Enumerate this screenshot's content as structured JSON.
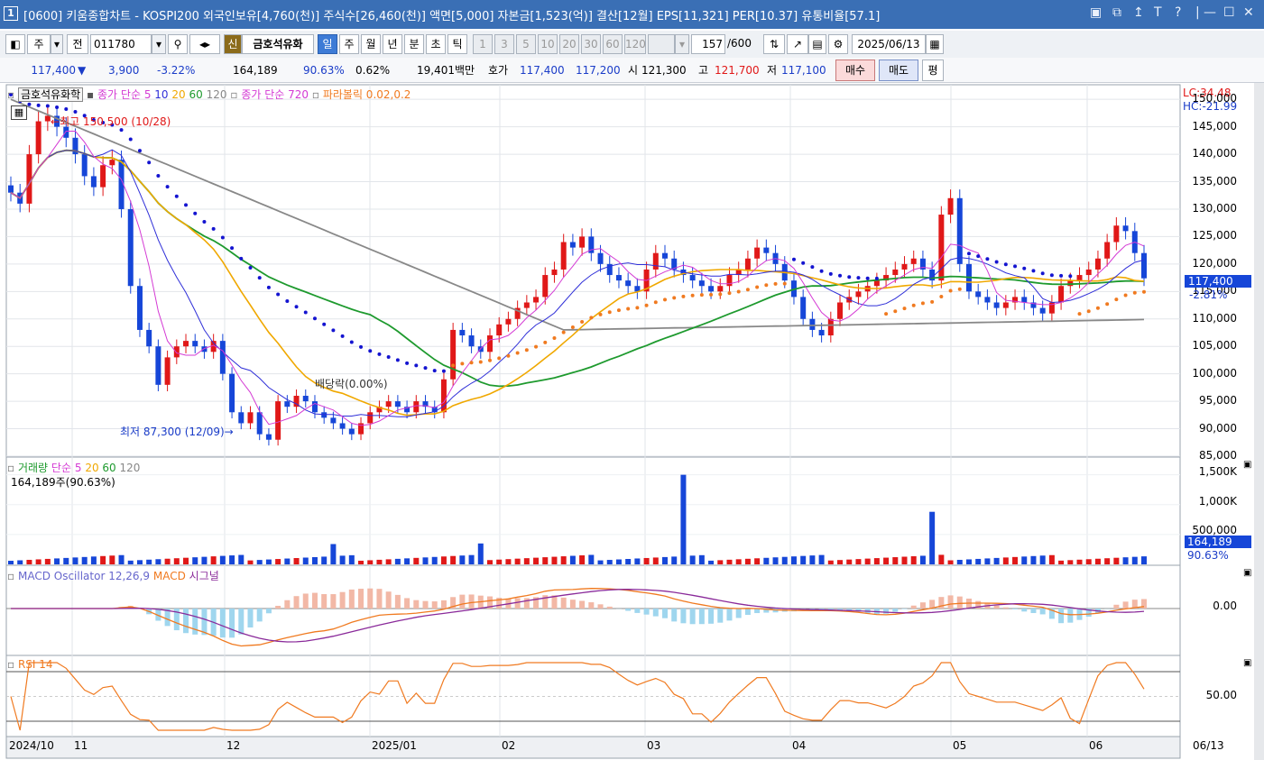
{
  "titlebar": {
    "window_number": "1",
    "title": "[0600] 키움종합차트 - KOSPI200 외국인보유[4,760(천)] 주식수[26,460(천)] 액면[5,000] 자본금[1,523(억)] 결산[12월] EPS[11,321] PER[10.37] 유통비율[57.1]",
    "controls": [
      "▣",
      "⧉",
      "↥",
      "T",
      "?",
      "|",
      "—",
      "☐",
      "✕"
    ]
  },
  "toolbar": {
    "market": "주",
    "market_btn": "전",
    "code": "011780",
    "search_icon": "search-icon",
    "new_label": "신",
    "stock_name": "금호석유화",
    "periods": [
      "일",
      "주",
      "월",
      "년",
      "분",
      "초",
      "틱"
    ],
    "active_period": "일",
    "intervals": [
      "1",
      "3",
      "5",
      "10",
      "20",
      "30",
      "60",
      "120"
    ],
    "count": "157",
    "count_total": "/600",
    "date": "2025/06/13"
  },
  "quote": {
    "price": "117,400",
    "change_arrow": "▼",
    "change": "3,900",
    "change_pct": "-3.22%",
    "volume": "164,189",
    "volume_ratio": "90.63%",
    "turnover": "0.62%",
    "amount": "19,401백만",
    "bid_label": "호가",
    "ask_price": "117,400",
    "bid_price": "117,200",
    "open_label": "시",
    "open": "121,300",
    "high_label": "고",
    "high": "121,700",
    "low_label": "저",
    "low": "117,100",
    "buy": "매수",
    "sell": "매도",
    "avg": "평"
  },
  "price_panel": {
    "legend_name": "금호석유화학",
    "ma_label": "종가 단순",
    "ma_periods": [
      "5",
      "10",
      "20",
      "60",
      "120"
    ],
    "ma720_label": "종가 단순 720",
    "parabolic_label": "파라볼릭 0.02,0.2",
    "lc": "LC:34.48",
    "hc": "HC:-21.99",
    "y_ticks": [
      "150,000",
      "145,000",
      "140,000",
      "135,000",
      "130,000",
      "125,000",
      "120,000",
      "115,000",
      "110,000",
      "105,000",
      "100,000",
      "95,000",
      "90,000",
      "85,000"
    ],
    "last_price_label": "117,400",
    "last_change_label": "-2.81%",
    "max_annotation": "최고 150,500 (10/28)",
    "min_annotation": "최저 87,300 (12/09)",
    "dividend_annotation": "배당락(0.00%)"
  },
  "volume_panel": {
    "legend_name": "거래량",
    "ma_label": "단순",
    "ma_periods": [
      "5",
      "20",
      "60",
      "120"
    ],
    "value_label": "164,189주(90.63%)",
    "y_ticks": [
      "1,500K",
      "1,000K",
      "500,000"
    ],
    "last_label": "164,189",
    "ratio_label": "90.63%"
  },
  "macd_panel": {
    "legend": "MACD Oscillator 12,26,9",
    "macd_label": "MACD",
    "signal_label": "시그널",
    "y_tick": "0.00"
  },
  "rsi_panel": {
    "legend": "RSI 14",
    "y_tick": "50.00"
  },
  "x_axis": [
    "2024/10",
    "11",
    "12",
    "2025/01",
    "02",
    "03",
    "04",
    "05",
    "06",
    "06/13"
  ],
  "colors": {
    "up": "#e01818",
    "down": "#1646d8",
    "ma5": "#d43ad4",
    "ma10": "#2f2fd8",
    "ma20": "#f0a800",
    "ma60": "#1e9a2e",
    "ma120": "#888888",
    "parabolic_up": "#f07a20",
    "parabolic_down": "#1414d0"
  },
  "chart_data": {
    "type": "candlestick",
    "title": "금호석유화학",
    "y_range": [
      85000,
      152000
    ],
    "dates_start": "2024/10",
    "dates_end": "06/13",
    "max": {
      "value": 150500,
      "date": "10/28"
    },
    "min": {
      "value": 87300,
      "date": "12/09"
    },
    "last_close": 117400,
    "series_close_estimate": [
      133000,
      131000,
      140000,
      146000,
      147000,
      145000,
      143000,
      140000,
      136000,
      134000,
      138000,
      139000,
      130000,
      116000,
      108000,
      105000,
      98000,
      103000,
      105000,
      106000,
      105000,
      104000,
      106000,
      100000,
      93000,
      91000,
      93000,
      89000,
      88000,
      95000,
      94000,
      96000,
      95000,
      93000,
      92000,
      91000,
      90000,
      89000,
      91000,
      93000,
      94000,
      95000,
      94000,
      93000,
      95000,
      94000,
      93000,
      99000,
      108000,
      107000,
      105000,
      104000,
      107000,
      109000,
      110000,
      112000,
      113000,
      114000,
      118000,
      119000,
      124000,
      123000,
      125000,
      122000,
      120000,
      118000,
      117000,
      116000,
      115000,
      119000,
      122000,
      121000,
      119000,
      118000,
      117000,
      116000,
      115000,
      116000,
      118000,
      119000,
      121000,
      123000,
      122000,
      120000,
      117000,
      114000,
      110000,
      108000,
      107000,
      110000,
      113000,
      114000,
      115000,
      116000,
      117000,
      118000,
      119000,
      120000,
      121000,
      119000,
      117000,
      129000,
      132000,
      120000,
      115000,
      114000,
      113000,
      112000,
      113000,
      114000,
      113000,
      112000,
      111000,
      113000,
      116000,
      117000,
      118000,
      119000,
      121000,
      124000,
      127000,
      126000,
      122000,
      117400
    ],
    "volume_y_range": [
      0,
      1600000
    ],
    "volume_peaks": [
      {
        "index": 73,
        "value": 1500000
      },
      {
        "index": 100,
        "value": 880000
      },
      {
        "index": 35,
        "value": 340000
      },
      {
        "index": 51,
        "value": 350000
      }
    ],
    "rsi_reference": 50
  }
}
